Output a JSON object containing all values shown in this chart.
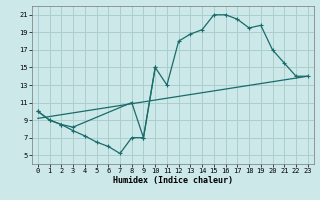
{
  "title": "",
  "xlabel": "Humidex (Indice chaleur)",
  "ylabel": "",
  "bg_color": "#cce8e8",
  "grid_color": "#aacece",
  "line_color": "#1a6b6b",
  "xlim": [
    -0.5,
    23.5
  ],
  "ylim": [
    4,
    22
  ],
  "xticks": [
    0,
    1,
    2,
    3,
    4,
    5,
    6,
    7,
    8,
    9,
    10,
    11,
    12,
    13,
    14,
    15,
    16,
    17,
    18,
    19,
    20,
    21,
    22,
    23
  ],
  "yticks": [
    5,
    7,
    9,
    11,
    13,
    15,
    17,
    19,
    21
  ],
  "line1_x": [
    0,
    1,
    2,
    3,
    8,
    9,
    10,
    11,
    12,
    13,
    14,
    15,
    16,
    17,
    18,
    19,
    20,
    21,
    22,
    23
  ],
  "line1_y": [
    10,
    9,
    8.5,
    8.2,
    11,
    7,
    15,
    13,
    18,
    18.8,
    19.3,
    21,
    21,
    20.5,
    19.5,
    19.8,
    17,
    15.5,
    14,
    14
  ],
  "line2_x": [
    0,
    1,
    2,
    3,
    4,
    5,
    6,
    7,
    8,
    9,
    10
  ],
  "line2_y": [
    10,
    9,
    8.5,
    7.8,
    7.2,
    6.5,
    6.0,
    5.2,
    7.0,
    7.0,
    15
  ],
  "line3_x": [
    0,
    23
  ],
  "line3_y": [
    9.2,
    14.0
  ]
}
